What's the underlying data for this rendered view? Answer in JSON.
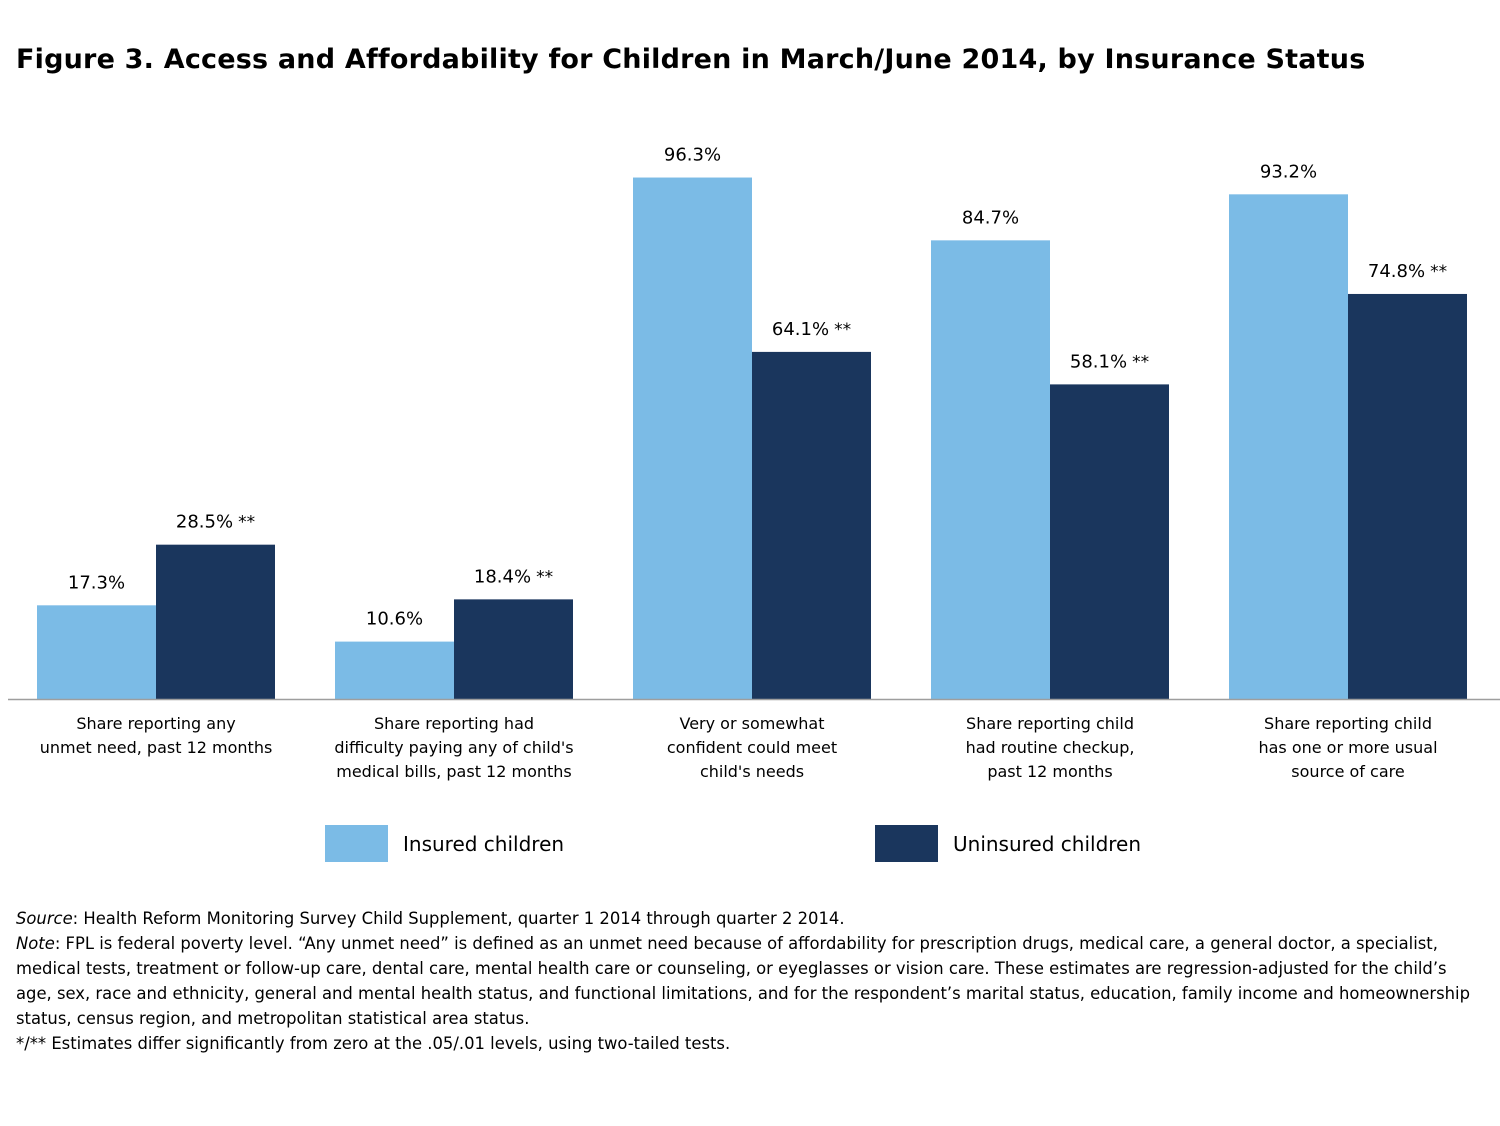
{
  "title": "Figure 3. Access and Affordability for Children in March/June 2014, by Insurance Status",
  "colors": {
    "insured": "#7bbbe6",
    "uninsured": "#1a365d",
    "axis": "#9e9e9e"
  },
  "chart_data": {
    "type": "bar",
    "title": "Figure 3. Access and Affordability for Children in March/June 2014, by Insurance Status",
    "ylim": [
      0,
      100
    ],
    "grid": false,
    "legend_position": "bottom",
    "categories": [
      [
        "Share reporting any",
        "unmet need, past 12 months"
      ],
      [
        "Share reporting had",
        "difficulty paying any of child's",
        "medical bills, past 12 months"
      ],
      [
        "Very or somewhat",
        "confident could meet",
        "child's needs"
      ],
      [
        "Share reporting child",
        "had routine checkup,",
        "past 12 months"
      ],
      [
        "Share reporting child",
        "has one or more usual",
        "source of care"
      ]
    ],
    "series": [
      {
        "name": "Insured children",
        "values": [
          17.3,
          10.6,
          96.3,
          84.7,
          93.2
        ],
        "labels": [
          "17.3%",
          "10.6%",
          "96.3%",
          "84.7%",
          "93.2%"
        ],
        "markers": [
          "",
          "",
          "",
          "",
          ""
        ]
      },
      {
        "name": "Uninsured children",
        "values": [
          28.5,
          18.4,
          64.1,
          58.1,
          74.8
        ],
        "labels": [
          "28.5%",
          "18.4%",
          "64.1%",
          "58.1%",
          "74.8%"
        ],
        "markers": [
          "**",
          "**",
          "**",
          "**",
          "**"
        ]
      }
    ]
  },
  "legend": {
    "insured": "Insured children",
    "uninsured": "Uninsured children"
  },
  "notes": {
    "source_label": "Source",
    "source_text": ": Health Reform Monitoring Survey Child Supplement, quarter 1 2014 through quarter 2 2014.",
    "note_label": "Note",
    "note_text": ": FPL is federal poverty level.  “Any unmet need” is defined as an unmet need because of affordability for prescription drugs, medical care, a general doctor, a specialist, medical tests, treatment or follow-up care, dental care, mental health care or counseling, or eyeglasses or vision care. These estimates are regression-adjusted for the child’s age, sex, race and ethnicity, general and mental health status, and functional limitations, and for the respondent’s marital status, education, family income and homeownership status, census region, and metropolitan statistical area status.",
    "significance": "*/** Estimates differ significantly from zero at the .05/.01 levels, using two-tailed tests."
  }
}
